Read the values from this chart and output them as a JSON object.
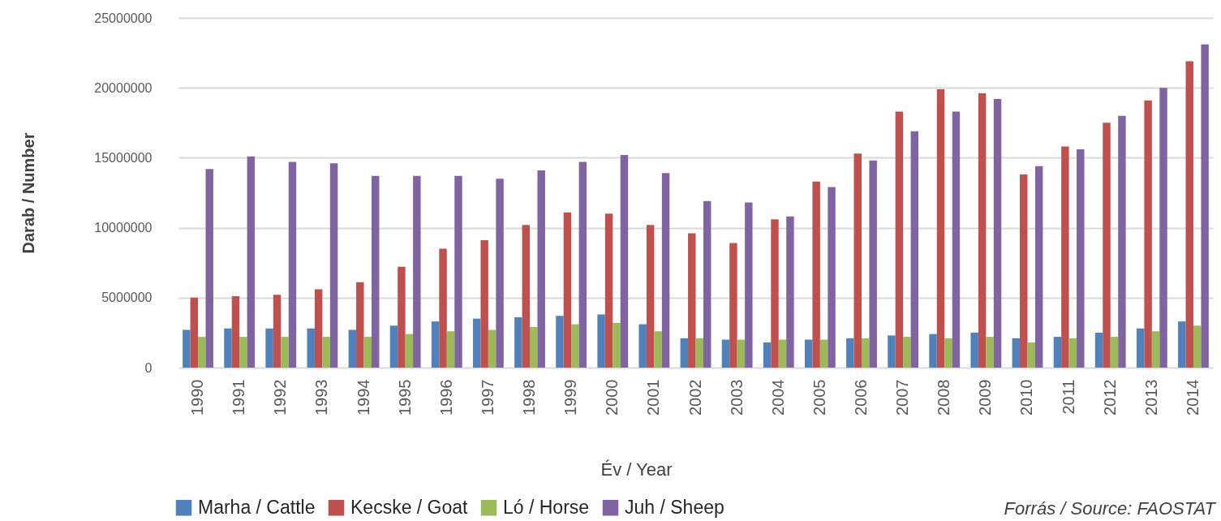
{
  "chart_data": {
    "type": "bar",
    "categories": [
      "1990",
      "1991",
      "1992",
      "1993",
      "1994",
      "1995",
      "1996",
      "1997",
      "1998",
      "1999",
      "2000",
      "2001",
      "2002",
      "2003",
      "2004",
      "2005",
      "2006",
      "2007",
      "2008",
      "2009",
      "2010",
      "2011",
      "2012",
      "2013",
      "2014"
    ],
    "series": [
      {
        "name": "Marha / Cattle",
        "color": "#4f81bd",
        "values": [
          2700000,
          2800000,
          2800000,
          2800000,
          2700000,
          3000000,
          3300000,
          3500000,
          3600000,
          3700000,
          3800000,
          3100000,
          2100000,
          2000000,
          1800000,
          2000000,
          2100000,
          2300000,
          2400000,
          2500000,
          2100000,
          2200000,
          2500000,
          2800000,
          3300000
        ]
      },
      {
        "name": "Kecske / Goat",
        "color": "#c0504d",
        "values": [
          5000000,
          5100000,
          5200000,
          5600000,
          6100000,
          7200000,
          8500000,
          9100000,
          10200000,
          11100000,
          11000000,
          10200000,
          9600000,
          8900000,
          10600000,
          13300000,
          15300000,
          18300000,
          19900000,
          19600000,
          13800000,
          15800000,
          17500000,
          19100000,
          21900000
        ]
      },
      {
        "name": "Ló / Horse",
        "color": "#9bbb59",
        "values": [
          2200000,
          2200000,
          2200000,
          2200000,
          2200000,
          2400000,
          2600000,
          2700000,
          2900000,
          3100000,
          3200000,
          2600000,
          2100000,
          2000000,
          2000000,
          2000000,
          2100000,
          2200000,
          2100000,
          2200000,
          1800000,
          2100000,
          2200000,
          2600000,
          3000000
        ]
      },
      {
        "name": "Juh / Sheep",
        "color": "#8064a2",
        "values": [
          14200000,
          15100000,
          14700000,
          14600000,
          13700000,
          13700000,
          13700000,
          13500000,
          14100000,
          14700000,
          15200000,
          13900000,
          11900000,
          11800000,
          10800000,
          12900000,
          14800000,
          16900000,
          18300000,
          19200000,
          14400000,
          15600000,
          18000000,
          20000000,
          23100000
        ]
      }
    ],
    "xlabel": "Év / Year",
    "ylabel": "Darab / Number",
    "ylim": [
      0,
      25000000
    ],
    "yticks": [
      0,
      5000000,
      10000000,
      15000000,
      20000000,
      25000000
    ],
    "grid": "y",
    "legend": "bottom",
    "annotations": [
      "Forrás / Source:  FAOSTAT"
    ]
  }
}
